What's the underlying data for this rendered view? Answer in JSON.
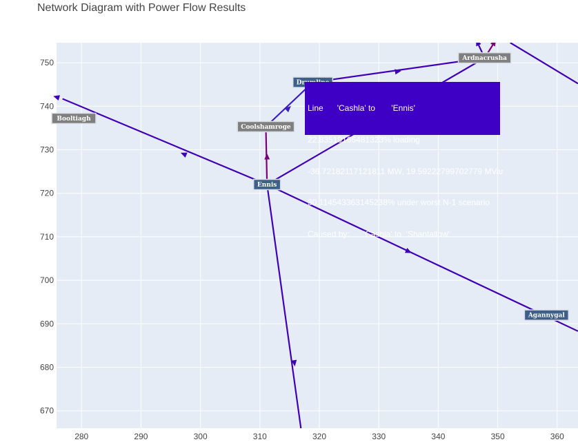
{
  "title": "Network Diagram with Power Flow Results",
  "chart_data": {
    "type": "network",
    "title": "Network Diagram with Power Flow Results",
    "xlim": [
      275.8,
      363.5
    ],
    "ylim": [
      754.6,
      666.0
    ],
    "x_ticks": [
      280,
      290,
      300,
      310,
      320,
      330,
      340,
      350,
      360
    ],
    "y_ticks": [
      670,
      680,
      690,
      700,
      710,
      720,
      730,
      740,
      750
    ],
    "colors": {
      "plot_bg": "#e5ecf6",
      "grid": "#ffffff",
      "line_flow": "#4000b8",
      "line_alt": "#3a1cc8",
      "line_overload": "#7a007a",
      "label_bg_blue": "#3d5f8a",
      "label_bg_gray": "#7f7f7f",
      "hover_bg": "#3d00c4"
    },
    "nodes": [
      {
        "name": "Ennis",
        "x": 311.2,
        "y": 722.0,
        "style": "blue"
      },
      {
        "name": "Agannygal",
        "x": 358.2,
        "y": 692.0,
        "style": "blue"
      },
      {
        "name": "Booltiagh",
        "x": 278.7,
        "y": 737.2,
        "style": "gray"
      },
      {
        "name": "Coolshamroge",
        "x": 311.0,
        "y": 735.3,
        "style": "gray"
      },
      {
        "name": "Drumline",
        "x": 318.9,
        "y": 745.5,
        "style": "blue"
      },
      {
        "name": "Ardnacrusha",
        "x": 347.8,
        "y": 751.1,
        "style": "gray"
      }
    ],
    "lines": [
      {
        "from": [
          311.2,
          722.0
        ],
        "to": [
          317.0,
          665.0
        ],
        "style": "line_flow",
        "arrow_at": [
          315.8,
          681.0
        ]
      },
      {
        "from": [
          311.2,
          722.0
        ],
        "to": [
          363.5,
          688.3
        ],
        "style": "line_flow",
        "arrow_at": [
          335.0,
          706.6
        ]
      },
      {
        "from": [
          311.2,
          722.0
        ],
        "to": [
          276.8,
          741.7
        ],
        "style": "line_flow",
        "arrow_at": [
          297.2,
          729.0
        ]
      },
      {
        "from": [
          276.8,
          741.7
        ],
        "to": [
          275.8,
          742.1
        ],
        "style": "line_flow",
        "arrow_at": [
          275.8,
          742.1
        ],
        "arrow_only": true
      },
      {
        "from": [
          311.2,
          722.0
        ],
        "to": [
          347.8,
          751.1
        ],
        "style": "line_flow",
        "arrow_at": [
          330.4,
          736.9
        ]
      },
      {
        "from": [
          311.2,
          722.0
        ],
        "to": [
          311.0,
          735.3
        ],
        "style": "line_overload",
        "arrow_at": [
          311.2,
          728.4
        ]
      },
      {
        "from": [
          311.0,
          735.3
        ],
        "to": [
          318.9,
          745.5
        ],
        "style": "line_alt",
        "arrow_at": [
          314.8,
          739.5
        ]
      },
      {
        "from": [
          318.9,
          745.5
        ],
        "to": [
          347.8,
          751.1
        ],
        "style": "line_flow",
        "arrow_at": [
          333.2,
          748.0
        ]
      },
      {
        "from": [
          347.8,
          751.1
        ],
        "to": [
          346.6,
          754.6
        ],
        "style": "line_flow",
        "arrow_at": [
          346.6,
          754.6
        ]
      },
      {
        "from": [
          347.8,
          751.1
        ],
        "to": [
          349.4,
          754.6
        ],
        "style": "line_overload",
        "arrow_at": [
          349.4,
          754.6
        ]
      },
      {
        "from": [
          352.1,
          754.6
        ],
        "to": [
          363.5,
          745.2
        ],
        "style": "line_flow"
      }
    ],
    "hover": {
      "lines": [
        "Line      'Cashla' to       'Ennis'",
        "22.83519166481323% loading",
        "-36.72182117121811 MW, 19.59222799702779 MVar",
        "30.114543363145238% under worst N-1 scenario",
        "Caused by:      'Cashla' to  'Shantallow'"
      ]
    }
  }
}
